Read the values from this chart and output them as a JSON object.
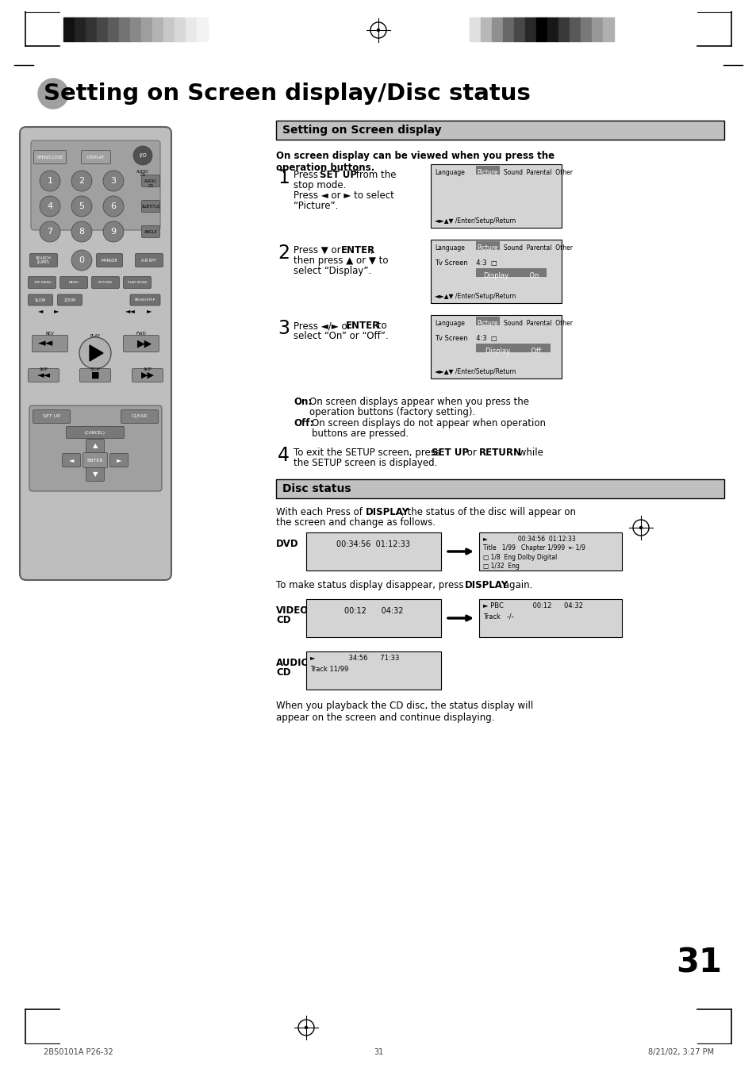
{
  "page_title": "Setting on Screen display/Disc status",
  "section1_title": "Setting on Screen display",
  "section2_title": "Disc status",
  "step1_a": "Press ",
  "step1_b": "SET UP",
  "step1_c": " from the",
  "step1_d": "stop mode.",
  "step1_e": "Press ◄ or ► to select",
  "step1_f": "“Picture”.",
  "step2_a": "Press ▼ or ",
  "step2_b": "ENTER",
  "step2_c": ",",
  "step2_d": "then press ▲ or ▼ to",
  "step2_e": "select “Display”.",
  "step3_a": "Press ◄/► or ",
  "step3_b": "ENTER",
  "step3_c": " to",
  "step3_d": "select “On” or “Off”.",
  "step4_a": "To exit the SETUP screen, press ",
  "step4_b": "SET UP",
  "step4_c": " or ",
  "step4_d": "RETURN",
  "step4_e": " while",
  "step4_f": "the SETUP screen is displayed.",
  "subtitle": "On screen display can be viewed when you press the\noperation buttons.",
  "on_label": "On:",
  "on_text": "On screen displays appear when you press the\noperation buttons (factory setting).",
  "off_label": "Off:",
  "off_text": "On screen displays do not appear when operation\nbuttons are pressed.",
  "disc_subtitle_a": "With each Press of ",
  "disc_subtitle_b": "DISPLAY",
  "disc_subtitle_c": ", the status of the disc will appear on",
  "disc_subtitle_d": "the screen and change as follows.",
  "dvd_label": "DVD",
  "dvd_s1": "00:34:56  01:12:33",
  "dvd_s2_l1": "►                00:34:56  01:12:33",
  "dvd_s2_l2": "Title   1/99   Chapter 1/999  ⇤ 1/9",
  "dvd_s2_l3": "□ 1/8  Eng Dolby Digital",
  "dvd_s2_l4": "□ 1/32  Eng",
  "display_again_a": "To make status display disappear, press ",
  "display_again_b": "DISPLAY",
  "display_again_c": " again.",
  "vcd_label": "VIDEO\nCD",
  "vcd_s1": "00:12      04:32",
  "vcd_s2_l1": "► PBC              00:12      04:32",
  "vcd_s2_l2": "Track   -/-",
  "acd_label": "AUDIO\nCD",
  "acd_s1_l1": "►                34:56      71:33",
  "acd_s1_l2": "Track 11/99",
  "cd_note": "When you playback the CD disc, the status display will\nappear on the screen and continue displaying.",
  "page_num": "31",
  "footer_l": "2B50101A P26-32",
  "footer_c": "31",
  "footer_r": "8/21/02, 3:27 PM",
  "bar_left": [
    "#111",
    "#222",
    "#333",
    "#484848",
    "#5d5d5d",
    "#737373",
    "#888",
    "#9e9e9e",
    "#b3b3b3",
    "#c8c8c8",
    "#d8d8d8",
    "#e8e8e8",
    "#f3f3f3"
  ],
  "bar_right": [
    "#e0e0e0",
    "#b8b8b8",
    "#909090",
    "#686868",
    "#484848",
    "#282828",
    "#000000",
    "#181818",
    "#383838",
    "#585858",
    "#787878",
    "#989898",
    "#b0b0b0"
  ],
  "remote_bg": "#bebebe",
  "remote_dark": "#a0a0a0",
  "btn_gray": "#909090",
  "btn_dark": "#707070",
  "screen_bg": "#d4d4d4",
  "section_bg": "#c0c0c0",
  "white": "#ffffff",
  "black": "#000000"
}
